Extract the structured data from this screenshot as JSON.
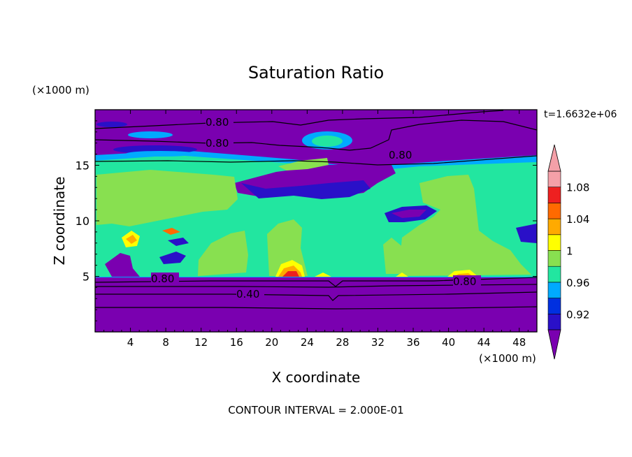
{
  "chart_data": {
    "type": "heatmap",
    "title": "Saturation Ratio",
    "xlabel": "X coordinate",
    "ylabel": "Z coordinate",
    "x_unit": "(×1000 m)",
    "y_unit": "(×1000 m)",
    "xlim": [
      0,
      50
    ],
    "ylim": [
      0,
      20
    ],
    "x_ticks": [
      4,
      8,
      12,
      16,
      20,
      24,
      28,
      32,
      36,
      40,
      44,
      48
    ],
    "y_ticks": [
      5,
      10,
      15
    ],
    "time_label": "t=1.6632e+06",
    "footer": "CONTOUR INTERVAL = 2.000E-01",
    "contour_labels": [
      "0.80",
      "0.80",
      "0.80",
      "0.80",
      "0.80",
      "0.40"
    ],
    "colorbar": {
      "levels": [
        0.9,
        0.92,
        0.94,
        0.96,
        0.98,
        1.0,
        1.02,
        1.04,
        1.06,
        1.08,
        1.1
      ],
      "tick_labels": [
        "0.92",
        "0.96",
        "1",
        "1.04",
        "1.08"
      ],
      "colors": [
        "#7a00b0",
        "#2a10c8",
        "#0030e0",
        "#00aaff",
        "#22e6a0",
        "#88e050",
        "#ffff00",
        "#ffaa00",
        "#ff6a00",
        "#ee2020",
        "#f4a0a8"
      ]
    }
  }
}
